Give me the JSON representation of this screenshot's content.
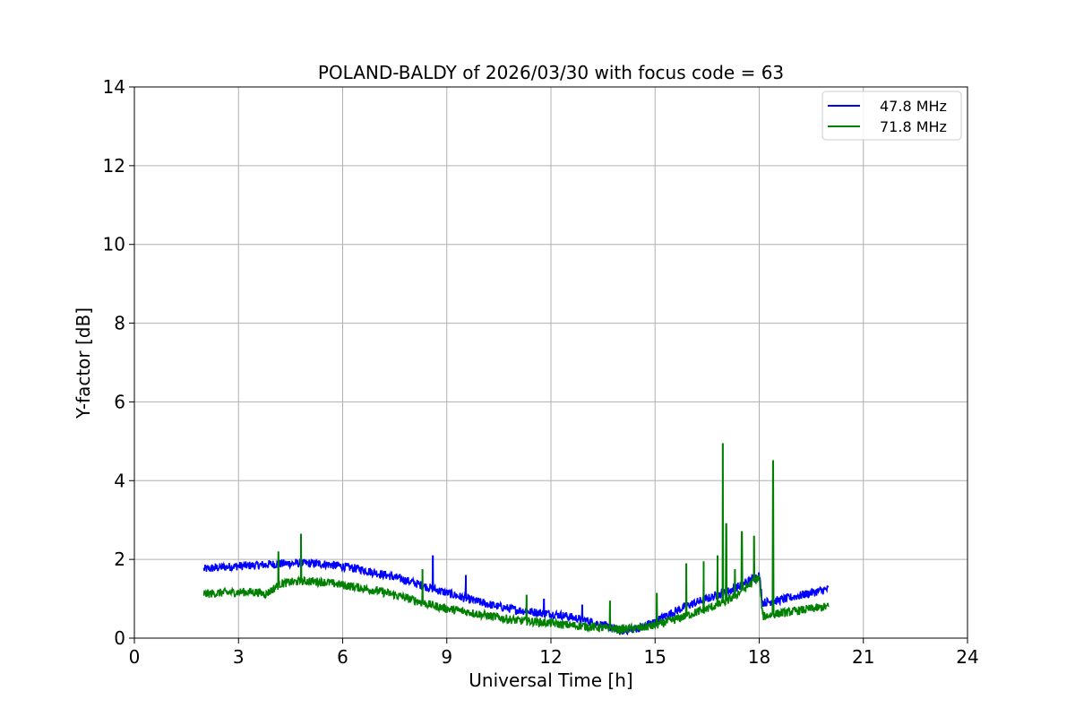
{
  "chart_data": {
    "type": "line",
    "title": "POLAND-BALDY of 2026/03/30 with focus code = 63",
    "xlabel": "Universal Time [h]",
    "ylabel": "Y-factor [dB]",
    "xlim": [
      0,
      24
    ],
    "ylim": [
      0,
      14
    ],
    "xticks": [
      0,
      3,
      6,
      9,
      12,
      15,
      18,
      21,
      24
    ],
    "yticks": [
      0,
      2,
      4,
      6,
      8,
      10,
      12,
      14
    ],
    "grid": true,
    "legend_position": "top-right",
    "series": [
      {
        "name": "47.8 MHz",
        "color": "#0000ff",
        "x": [
          2.0,
          2.5,
          3.0,
          3.5,
          4.0,
          4.5,
          5.0,
          5.5,
          6.0,
          6.5,
          7.0,
          7.5,
          8.0,
          8.5,
          9.0,
          9.5,
          10.0,
          10.5,
          11.0,
          11.5,
          12.0,
          12.5,
          13.0,
          13.5,
          14.0,
          14.5,
          15.0,
          15.5,
          16.0,
          16.5,
          17.0,
          17.5,
          18.0,
          18.1,
          18.5,
          19.0,
          19.5,
          20.0
        ],
        "y": [
          1.75,
          1.8,
          1.83,
          1.85,
          1.88,
          1.9,
          1.9,
          1.88,
          1.82,
          1.75,
          1.65,
          1.55,
          1.42,
          1.28,
          1.15,
          1.02,
          0.9,
          0.8,
          0.72,
          0.66,
          0.62,
          0.55,
          0.45,
          0.33,
          0.18,
          0.25,
          0.42,
          0.65,
          0.85,
          1.0,
          1.15,
          1.35,
          1.6,
          0.9,
          0.95,
          1.05,
          1.15,
          1.25
        ],
        "spikes": [
          {
            "x": 8.6,
            "y": 2.1
          },
          {
            "x": 9.55,
            "y": 1.6
          },
          {
            "x": 11.8,
            "y": 1.0
          },
          {
            "x": 12.9,
            "y": 0.85
          }
        ]
      },
      {
        "name": "71.8 MHz",
        "color": "#008000",
        "x": [
          2.0,
          2.5,
          3.0,
          3.5,
          3.8,
          4.0,
          4.2,
          4.5,
          5.0,
          5.5,
          6.0,
          6.5,
          7.0,
          7.5,
          8.0,
          8.5,
          9.0,
          9.5,
          10.0,
          10.5,
          11.0,
          11.5,
          12.0,
          12.5,
          13.0,
          13.5,
          14.0,
          14.5,
          15.0,
          15.5,
          16.0,
          16.5,
          17.0,
          17.5,
          18.0,
          18.1,
          18.5,
          19.0,
          19.5,
          20.0
        ],
        "y": [
          1.12,
          1.15,
          1.17,
          1.17,
          1.12,
          1.25,
          1.38,
          1.42,
          1.45,
          1.42,
          1.35,
          1.28,
          1.2,
          1.1,
          0.98,
          0.85,
          0.75,
          0.68,
          0.6,
          0.52,
          0.45,
          0.42,
          0.38,
          0.33,
          0.3,
          0.26,
          0.22,
          0.25,
          0.32,
          0.45,
          0.6,
          0.75,
          0.9,
          1.2,
          1.55,
          0.55,
          0.62,
          0.68,
          0.75,
          0.8
        ],
        "spikes": [
          {
            "x": 4.15,
            "y": 2.2
          },
          {
            "x": 4.8,
            "y": 2.65
          },
          {
            "x": 8.3,
            "y": 1.75
          },
          {
            "x": 11.3,
            "y": 1.1
          },
          {
            "x": 13.7,
            "y": 0.95
          },
          {
            "x": 15.05,
            "y": 1.15
          },
          {
            "x": 15.9,
            "y": 1.9
          },
          {
            "x": 16.4,
            "y": 1.95
          },
          {
            "x": 16.8,
            "y": 2.1
          },
          {
            "x": 16.95,
            "y": 4.95
          },
          {
            "x": 17.05,
            "y": 2.9
          },
          {
            "x": 17.3,
            "y": 1.75
          },
          {
            "x": 17.5,
            "y": 2.7
          },
          {
            "x": 17.85,
            "y": 2.6
          },
          {
            "x": 18.4,
            "y": 4.5
          }
        ]
      }
    ]
  }
}
